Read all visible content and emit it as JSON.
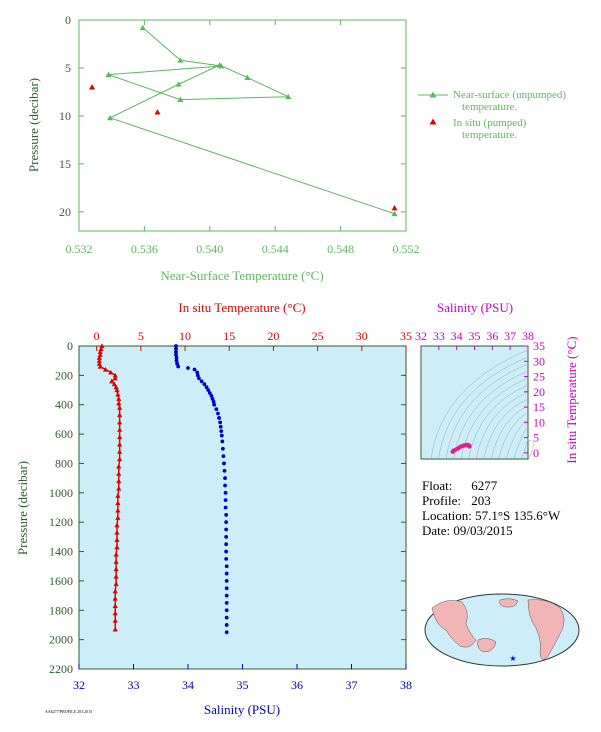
{
  "colors": {
    "green": "#5cb85c",
    "red": "#e00000",
    "blue": "#0000cc",
    "magenta": "#cc00cc",
    "dark_green": "#2e5e2e",
    "panel_bg": "#cdeef8",
    "land": "#f2b5b5",
    "ocean": "#cdeef8"
  },
  "chart_data": [
    {
      "type": "line",
      "id": "near-surface",
      "xlabel": "Near-Surface Temperature (°C)",
      "ylabel": "Pressure (decibar)",
      "xlim": [
        0.532,
        0.552
      ],
      "ylim": [
        0,
        22
      ],
      "y_inverted": true,
      "xticks": [
        "0.532",
        "0.536",
        "0.540",
        "0.544",
        "0.548",
        "0.552"
      ],
      "yticks": [
        "0",
        "5",
        "10",
        "15",
        "20"
      ],
      "series": [
        {
          "name": "Near-surface (unpumped) temperature.",
          "marker": "triangle",
          "line": true,
          "points": [
            [
              0.5359,
              0.8
            ],
            [
              0.5382,
              4.2
            ],
            [
              0.5407,
              4.8
            ],
            [
              0.5338,
              5.7
            ],
            [
              0.5382,
              8.3
            ],
            [
              0.5448,
              8.0
            ],
            [
              0.5423,
              6.0
            ],
            [
              0.5406,
              4.7
            ],
            [
              0.5381,
              6.7
            ],
            [
              0.5339,
              10.2
            ],
            [
              0.5513,
              20.2
            ]
          ]
        },
        {
          "name": "In situ (pumped) temperature.",
          "marker": "triangle",
          "line": false,
          "points": [
            [
              0.5328,
              7.0
            ],
            [
              0.5368,
              9.6
            ],
            [
              0.5513,
              19.6
            ]
          ]
        }
      ]
    },
    {
      "type": "scatter",
      "id": "profile",
      "x_top_label": "In situ Temperature (°C)",
      "x_bottom_label": "Salinity (PSU)",
      "ylabel": "Pressure (decibar)",
      "temp_lim": [
        -2,
        35
      ],
      "sal_lim": [
        32,
        38
      ],
      "ylim": [
        0,
        2200
      ],
      "y_inverted": true,
      "temp_ticks": [
        "0",
        "5",
        "10",
        "15",
        "20",
        "25",
        "30",
        "35"
      ],
      "sal_ticks": [
        "32",
        "33",
        "34",
        "35",
        "36",
        "37",
        "38"
      ],
      "yticks": [
        "0",
        "200",
        "400",
        "600",
        "800",
        "1000",
        "1200",
        "1400",
        "1600",
        "1800",
        "2000",
        "2200"
      ],
      "temperature_profile": [
        [
          0.6,
          0
        ],
        [
          0.5,
          20
        ],
        [
          0.4,
          40
        ],
        [
          0.4,
          60
        ],
        [
          0.3,
          80
        ],
        [
          0.3,
          100
        ],
        [
          0.3,
          120
        ],
        [
          0.4,
          140
        ],
        [
          1.0,
          160
        ],
        [
          1.6,
          180
        ],
        [
          2.1,
          200
        ],
        [
          2.1,
          220
        ],
        [
          1.7,
          240
        ],
        [
          2.0,
          260
        ],
        [
          2.2,
          280
        ],
        [
          2.3,
          300
        ],
        [
          2.4,
          330
        ],
        [
          2.5,
          360
        ],
        [
          2.5,
          390
        ],
        [
          2.6,
          420
        ],
        [
          2.6,
          470
        ],
        [
          2.6,
          520
        ],
        [
          2.6,
          570
        ],
        [
          2.6,
          620
        ],
        [
          2.6,
          670
        ],
        [
          2.6,
          720
        ],
        [
          2.6,
          770
        ],
        [
          2.5,
          820
        ],
        [
          2.5,
          870
        ],
        [
          2.5,
          920
        ],
        [
          2.5,
          970
        ],
        [
          2.4,
          1020
        ],
        [
          2.4,
          1070
        ],
        [
          2.4,
          1120
        ],
        [
          2.4,
          1170
        ],
        [
          2.3,
          1220
        ],
        [
          2.3,
          1270
        ],
        [
          2.3,
          1320
        ],
        [
          2.3,
          1370
        ],
        [
          2.2,
          1420
        ],
        [
          2.2,
          1470
        ],
        [
          2.2,
          1520
        ],
        [
          2.2,
          1570
        ],
        [
          2.2,
          1620
        ],
        [
          2.1,
          1670
        ],
        [
          2.1,
          1720
        ],
        [
          2.1,
          1770
        ],
        [
          2.1,
          1820
        ],
        [
          2.1,
          1870
        ],
        [
          2.1,
          1930
        ]
      ],
      "salinity_profile": [
        [
          33.78,
          0
        ],
        [
          33.78,
          20
        ],
        [
          33.78,
          40
        ],
        [
          33.78,
          60
        ],
        [
          33.79,
          80
        ],
        [
          33.79,
          100
        ],
        [
          33.8,
          120
        ],
        [
          33.82,
          140
        ],
        [
          34.0,
          150
        ],
        [
          34.12,
          160
        ],
        [
          34.17,
          180
        ],
        [
          34.18,
          200
        ],
        [
          34.2,
          220
        ],
        [
          34.25,
          240
        ],
        [
          34.3,
          260
        ],
        [
          34.34,
          280
        ],
        [
          34.37,
          300
        ],
        [
          34.4,
          320
        ],
        [
          34.43,
          340
        ],
        [
          34.45,
          360
        ],
        [
          34.47,
          380
        ],
        [
          34.48,
          400
        ],
        [
          34.52,
          430
        ],
        [
          34.55,
          460
        ],
        [
          34.57,
          490
        ],
        [
          34.59,
          520
        ],
        [
          34.6,
          550
        ],
        [
          34.61,
          580
        ],
        [
          34.62,
          610
        ],
        [
          34.63,
          650
        ],
        [
          34.64,
          700
        ],
        [
          34.65,
          750
        ],
        [
          34.66,
          800
        ],
        [
          34.67,
          850
        ],
        [
          34.68,
          900
        ],
        [
          34.68,
          950
        ],
        [
          34.69,
          1000
        ],
        [
          34.69,
          1050
        ],
        [
          34.69,
          1100
        ],
        [
          34.7,
          1150
        ],
        [
          34.7,
          1200
        ],
        [
          34.7,
          1250
        ],
        [
          34.7,
          1300
        ],
        [
          34.7,
          1350
        ],
        [
          34.7,
          1400
        ],
        [
          34.7,
          1450
        ],
        [
          34.71,
          1500
        ],
        [
          34.71,
          1550
        ],
        [
          34.71,
          1600
        ],
        [
          34.71,
          1650
        ],
        [
          34.71,
          1700
        ],
        [
          34.71,
          1750
        ],
        [
          34.71,
          1800
        ],
        [
          34.71,
          1850
        ],
        [
          34.71,
          1900
        ],
        [
          34.71,
          1950
        ]
      ]
    },
    {
      "type": "scatter",
      "id": "ts-diagram",
      "title": "Salinity (PSU)",
      "ylabel": "In situ Temperature (°C)",
      "xlim": [
        32,
        38
      ],
      "ylim": [
        -2,
        35
      ],
      "xticks": [
        "32",
        "33",
        "34",
        "35",
        "36",
        "37",
        "38"
      ],
      "yticks": [
        "0",
        "5",
        "10",
        "15",
        "20",
        "25",
        "30",
        "35"
      ],
      "points": [
        [
          33.78,
          0.4
        ],
        [
          33.8,
          0.5
        ],
        [
          33.85,
          0.8
        ],
        [
          34.0,
          1.2
        ],
        [
          34.1,
          1.5
        ],
        [
          34.2,
          2.0
        ],
        [
          34.3,
          2.2
        ],
        [
          34.4,
          2.4
        ],
        [
          34.5,
          2.5
        ],
        [
          34.6,
          2.6
        ],
        [
          34.65,
          2.5
        ],
        [
          34.7,
          2.4
        ],
        [
          34.71,
          2.2
        ],
        [
          34.71,
          2.1
        ]
      ]
    }
  ],
  "float_info": {
    "float_label": "Float:",
    "float_value": "6277",
    "profile_label": "Profile:",
    "profile_value": "203",
    "location_label": "Location:",
    "location_value": "57.1°S  135.6°W",
    "date_label": "Date:",
    "date_value": "09/03/2015"
  },
  "footer_text": "AA6277/PROFILE 203 2015"
}
